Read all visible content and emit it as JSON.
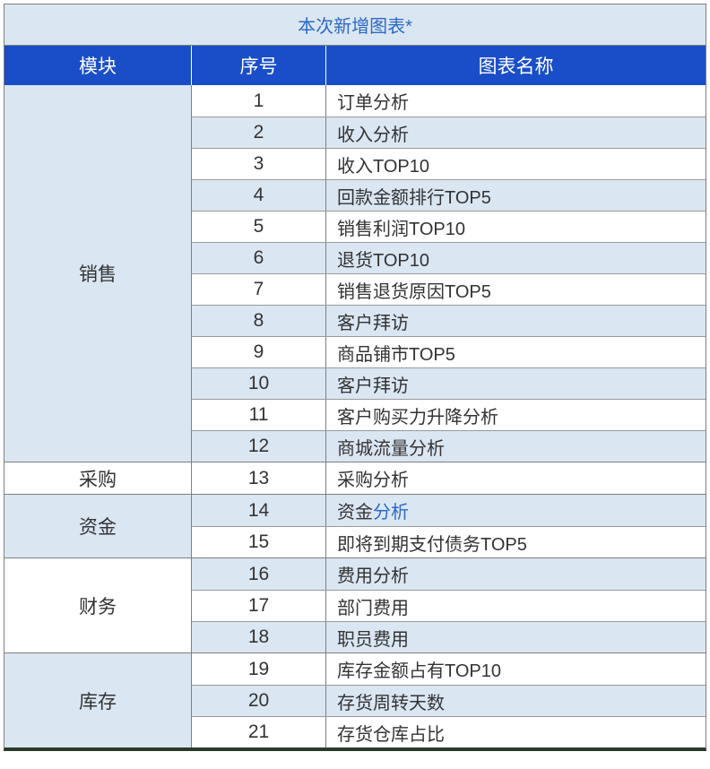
{
  "title": "本次新增图表*",
  "columns": {
    "module": "模块",
    "seq": "序号",
    "name": "图表名称"
  },
  "colors": {
    "title_bg": "#dae6f2",
    "title_text": "#2d69c4",
    "header_bg": "#1a4ec8",
    "header_text": "#ffffff",
    "row_odd_bg": "#ffffff",
    "row_even_bg": "#dae6f2",
    "border": "#7f7f7f",
    "inner_border": "#9a9a9a",
    "text": "#333333",
    "link": "#2d69c4",
    "bottom_border": "#2a3a2a"
  },
  "modules": [
    {
      "name": "销售",
      "module_bg": "#dae6f2",
      "rows": [
        {
          "seq": "1",
          "name": "订单分析",
          "bg": "#ffffff"
        },
        {
          "seq": "2",
          "name": "收入分析",
          "bg": "#dae6f2"
        },
        {
          "seq": "3",
          "name": "收入TOP10",
          "bg": "#ffffff"
        },
        {
          "seq": "4",
          "name": "回款金额排行TOP5",
          "bg": "#dae6f2"
        },
        {
          "seq": "5",
          "name": "销售利润TOP10",
          "bg": "#ffffff"
        },
        {
          "seq": "6",
          "name": "退货TOP10",
          "bg": "#dae6f2"
        },
        {
          "seq": "7",
          "name": "销售退货原因TOP5",
          "bg": "#ffffff"
        },
        {
          "seq": "8",
          "name": "客户拜访",
          "bg": "#dae6f2"
        },
        {
          "seq": "9",
          "name": "商品铺市TOP5",
          "bg": "#ffffff"
        },
        {
          "seq": "10",
          "name": "客户拜访",
          "bg": "#dae6f2"
        },
        {
          "seq": "11",
          "name": "客户购买力升降分析",
          "bg": "#ffffff"
        },
        {
          "seq": "12",
          "name": "商城流量分析",
          "bg": "#dae6f2"
        }
      ]
    },
    {
      "name": "采购",
      "module_bg": "#ffffff",
      "rows": [
        {
          "seq": "13",
          "name": "采购分析",
          "bg": "#ffffff"
        }
      ]
    },
    {
      "name": "资金",
      "module_bg": "#dae6f2",
      "rows": [
        {
          "seq": "14",
          "name_prefix": "资金",
          "name_link": "分析",
          "bg": "#dae6f2",
          "has_link": true
        },
        {
          "seq": "15",
          "name": "即将到期支付债务TOP5",
          "bg": "#ffffff"
        }
      ]
    },
    {
      "name": "财务",
      "module_bg": "#ffffff",
      "rows": [
        {
          "seq": "16",
          "name": "费用分析",
          "bg": "#dae6f2"
        },
        {
          "seq": "17",
          "name": "部门费用",
          "bg": "#ffffff"
        },
        {
          "seq": "18",
          "name": "职员费用",
          "bg": "#dae6f2"
        }
      ]
    },
    {
      "name": "库存",
      "module_bg": "#dae6f2",
      "rows": [
        {
          "seq": "19",
          "name": "库存金额占有TOP10",
          "bg": "#ffffff"
        },
        {
          "seq": "20",
          "name": "存货周转天数",
          "bg": "#dae6f2"
        },
        {
          "seq": "21",
          "name": "存货仓库占比",
          "bg": "#ffffff"
        }
      ]
    }
  ]
}
